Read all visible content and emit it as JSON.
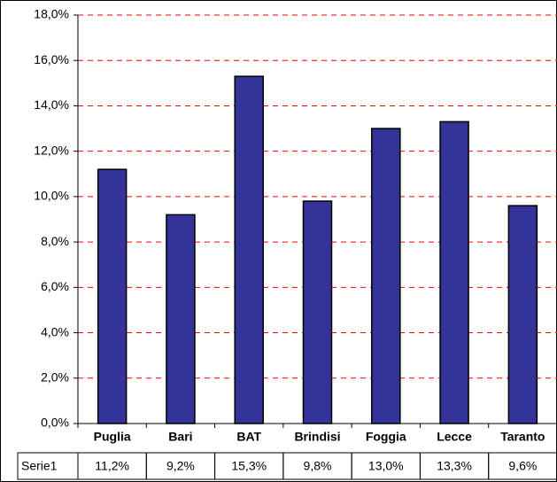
{
  "chart_data": {
    "type": "bar",
    "categories": [
      "Puglia",
      "Bari",
      "BAT",
      "Brindisi",
      "Foggia",
      "Lecce",
      "Taranto"
    ],
    "series": [
      {
        "name": "Serie1",
        "color": "#333399",
        "values": [
          11.2,
          9.2,
          15.3,
          9.8,
          13.0,
          13.3,
          9.6
        ],
        "value_labels": [
          "11,2%",
          "9,2%",
          "15,3%",
          "9,8%",
          "13,0%",
          "13,3%",
          "9,6%"
        ]
      }
    ],
    "ylim": [
      0,
      18
    ],
    "yticks": [
      {
        "value": 0,
        "label": "0,0%"
      },
      {
        "value": 2,
        "label": "2,0%"
      },
      {
        "value": 4,
        "label": "4,0%"
      },
      {
        "value": 6,
        "label": "6,0%"
      },
      {
        "value": 8,
        "label": "8,0%"
      },
      {
        "value": 10,
        "label": "10,0%"
      },
      {
        "value": 12,
        "label": "12,0%"
      },
      {
        "value": 14,
        "label": "14,0%"
      },
      {
        "value": 16,
        "label": "16,0%"
      },
      {
        "value": 18,
        "label": "18,0%"
      }
    ],
    "grid": true,
    "grid_color": "#ff0000"
  }
}
